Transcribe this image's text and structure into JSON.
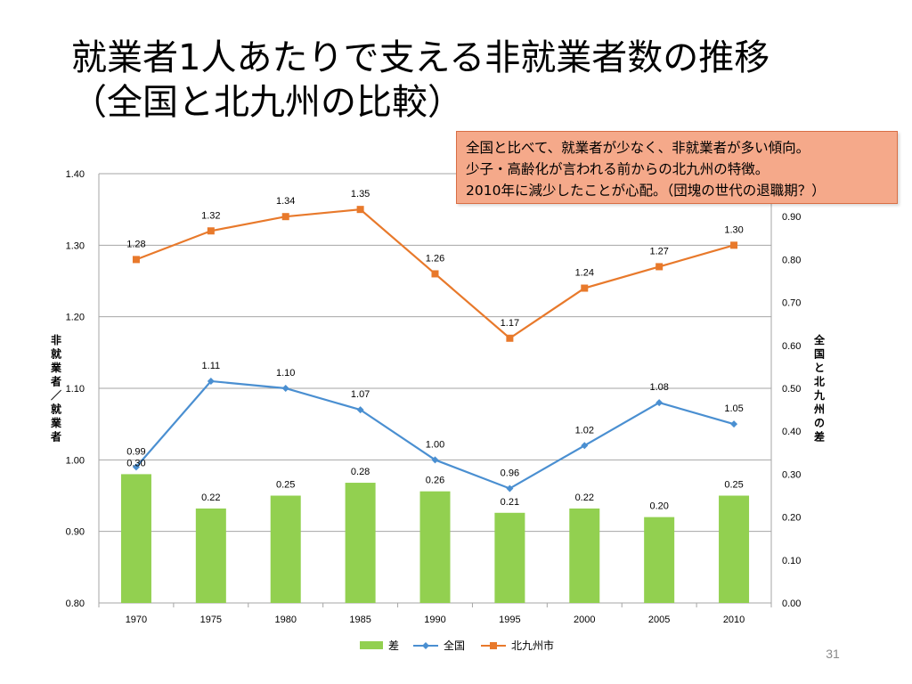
{
  "slide": {
    "title_line1": "就業者1人あたりで支える非就業者数の推移",
    "title_line2": "（全国と北九州の比較）",
    "page_number": "31"
  },
  "note": {
    "line1": "全国と比べて、就業者が少なく、非就業者が多い傾向。",
    "line2": "少子・高齢化が言われる前からの北九州の特徴。",
    "line3": "2010年に減少したことが心配。（団塊の世代の退職期？）"
  },
  "colors": {
    "bar": "#92d050",
    "national": "#4a8fd1",
    "kitakyushu": "#e8792b",
    "grid": "#a6a6a6"
  },
  "chart_data": {
    "type": "bar+line",
    "categories": [
      "1970",
      "1975",
      "1980",
      "1985",
      "1990",
      "1995",
      "2000",
      "2005",
      "2010"
    ],
    "series": [
      {
        "name": "差",
        "type": "bar",
        "axis": "right",
        "values": [
          0.3,
          0.22,
          0.25,
          0.28,
          0.26,
          0.21,
          0.22,
          0.2,
          0.25
        ],
        "labels": [
          "0.30",
          "0.22",
          "0.25",
          "0.28",
          "0.26",
          "0.21",
          "0.22",
          "0.20",
          "0.25"
        ]
      },
      {
        "name": "全国",
        "type": "line",
        "axis": "left",
        "marker": "diamond",
        "values": [
          0.99,
          1.11,
          1.1,
          1.07,
          1.0,
          0.96,
          1.02,
          1.08,
          1.05
        ],
        "labels": [
          "0.99",
          "1.11",
          "1.10",
          "1.07",
          "1.00",
          "0.96",
          "1.02",
          "1.08",
          "1.05"
        ]
      },
      {
        "name": "北九州市",
        "type": "line",
        "axis": "left",
        "marker": "square",
        "values": [
          1.28,
          1.32,
          1.34,
          1.35,
          1.26,
          1.17,
          1.24,
          1.27,
          1.3
        ],
        "labels": [
          "1.28",
          "1.32",
          "1.34",
          "1.35",
          "1.26",
          "1.17",
          "1.24",
          "1.27",
          "1.30"
        ]
      }
    ],
    "left_axis": {
      "label": "非就業者／就業者",
      "ylim": [
        0.8,
        1.4
      ],
      "ticks": [
        "0.80",
        "0.90",
        "1.00",
        "1.10",
        "1.20",
        "1.30",
        "1.40"
      ]
    },
    "right_axis": {
      "label": "全国と北九州の差",
      "ylim": [
        0.0,
        1.0
      ],
      "ticks": [
        "0.00",
        "0.10",
        "0.20",
        "0.30",
        "0.40",
        "0.50",
        "0.60",
        "0.70",
        "0.80",
        "0.90"
      ]
    },
    "grid": true,
    "legend_position": "bottom"
  }
}
